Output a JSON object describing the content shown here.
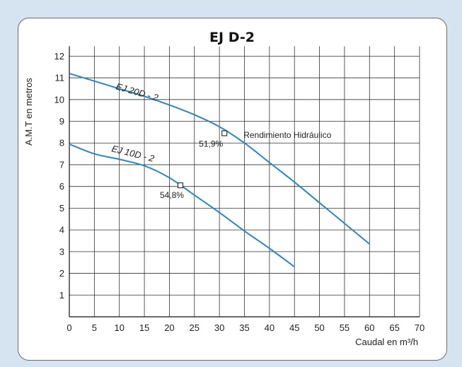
{
  "chart_data": {
    "type": "line",
    "title": "EJ D-2",
    "xlabel": "Caudal en m³/h",
    "ylabel": "A.M.T en metros",
    "xlim": [
      0,
      70
    ],
    "ylim": [
      0,
      12.5
    ],
    "xticks": [
      0,
      5,
      10,
      15,
      20,
      25,
      30,
      35,
      40,
      45,
      50,
      55,
      60,
      65,
      70
    ],
    "yticks": [
      1,
      2,
      3,
      4,
      5,
      6,
      7,
      8,
      9,
      10,
      11,
      12
    ],
    "grid": true,
    "series": [
      {
        "name": "EJ 20D - 2",
        "color": "#2a86c8",
        "x": [
          0,
          5,
          10,
          15,
          20,
          25,
          30,
          35,
          40,
          45,
          50,
          55,
          60
        ],
        "y": [
          11.2,
          10.85,
          10.5,
          10.15,
          9.75,
          9.3,
          8.75,
          8.0,
          7.1,
          6.2,
          5.25,
          4.3,
          3.35
        ]
      },
      {
        "name": "EJ 10D - 2",
        "color": "#2a86c8",
        "x": [
          0,
          5,
          10,
          15,
          20,
          25,
          30,
          35,
          40,
          45
        ],
        "y": [
          7.95,
          7.5,
          7.25,
          6.95,
          6.4,
          5.6,
          4.8,
          3.95,
          3.15,
          2.3
        ]
      }
    ],
    "annotations": [
      {
        "text": "Rendimiento Hidráulico",
        "x": 31,
        "y": 8.4
      },
      {
        "text": "51,9%",
        "x": 31,
        "y": 8.45,
        "marker": true
      },
      {
        "text": "54,8%",
        "x": 22.2,
        "y": 6.05,
        "marker": true
      }
    ]
  }
}
